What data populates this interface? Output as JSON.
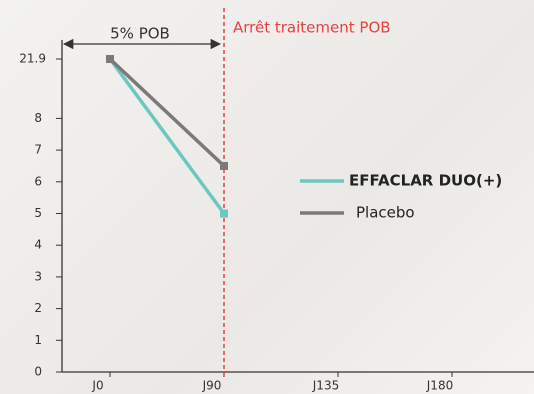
{
  "chart_data": {
    "type": "line",
    "categories": [
      "J0",
      "J90",
      "J135",
      "J180"
    ],
    "series": [
      {
        "name": "EFFACLAR DUO(+)",
        "color": "#6cc6c1",
        "values": [
          21.9,
          5,
          null,
          null
        ]
      },
      {
        "name": "Placebo",
        "color": "#7a7a7a",
        "values": [
          21.9,
          6.5,
          null,
          null
        ]
      }
    ],
    "ylim": [
      0,
      21.9
    ],
    "yticks": [
      0,
      1,
      2,
      3,
      4,
      5,
      6,
      7,
      8,
      21.9
    ],
    "annotations": [
      {
        "text": "5% POB"
      },
      {
        "text": "Arrêt traitement POB",
        "x": "J90",
        "color": "#e8413f"
      }
    ]
  }
}
